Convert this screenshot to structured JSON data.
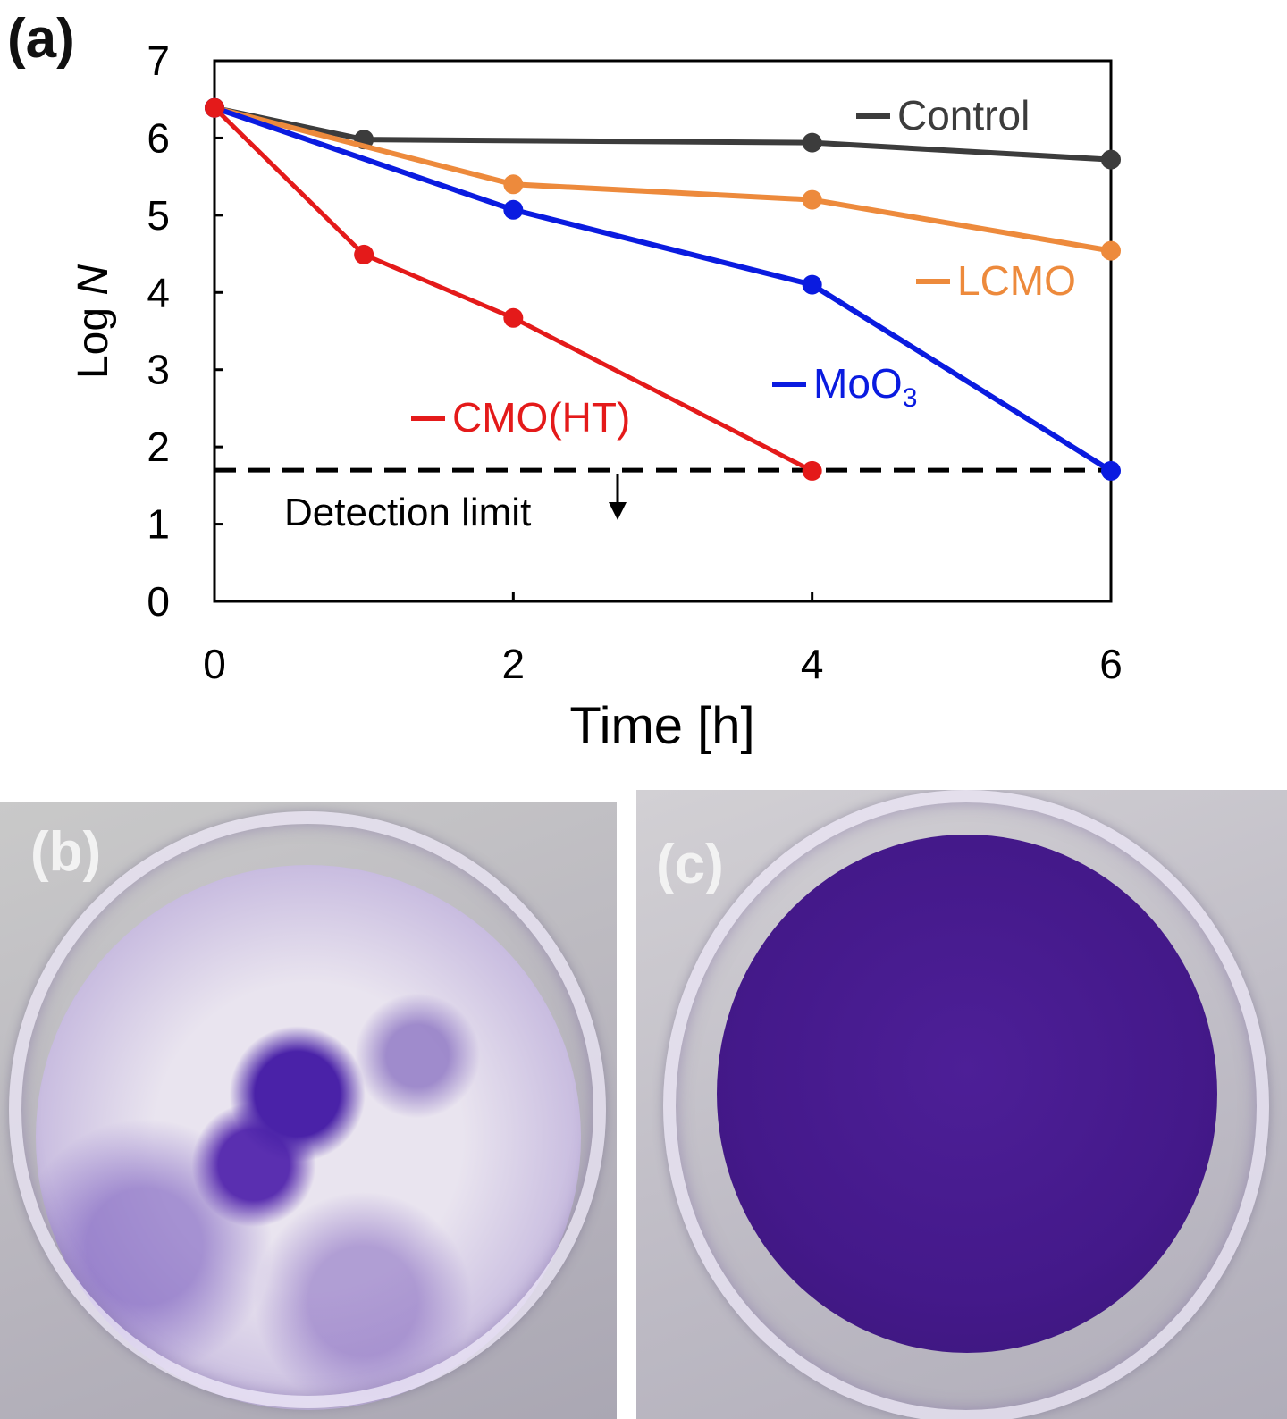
{
  "panels": {
    "a": "(a)",
    "b": "(b)",
    "c": "(c)"
  },
  "chart_data": {
    "type": "line",
    "title": "",
    "xlabel": "Time [h]",
    "ylabel_prefix": "Log ",
    "ylabel_var": "N",
    "xlim": [
      0,
      6
    ],
    "ylim": [
      0,
      7
    ],
    "xticks": [
      0,
      2,
      4,
      6
    ],
    "yticks": [
      0,
      1,
      2,
      3,
      4,
      5,
      6,
      7
    ],
    "grid": false,
    "series": [
      {
        "name": "Control",
        "color": "#3c3c3c",
        "x": [
          0,
          1,
          4,
          6
        ],
        "y": [
          6.39,
          5.98,
          5.94,
          5.72
        ]
      },
      {
        "name": "LCMO",
        "color": "#ed8a3c",
        "x": [
          0,
          2,
          4,
          6
        ],
        "y": [
          6.39,
          5.4,
          5.2,
          4.54
        ]
      },
      {
        "name": "MoO",
        "subscript": "3",
        "color": "#0a1be0",
        "x": [
          0,
          2,
          4,
          6
        ],
        "y": [
          6.39,
          5.07,
          4.1,
          1.69
        ]
      },
      {
        "name": "CMO(HT)",
        "color": "#e41a1a",
        "x": [
          0,
          1,
          2,
          4
        ],
        "y": [
          6.39,
          4.49,
          3.67,
          1.69
        ]
      }
    ],
    "reference_line": {
      "label": "Detection limit",
      "y": 1.7,
      "style": "dashed",
      "color": "#000000"
    }
  }
}
